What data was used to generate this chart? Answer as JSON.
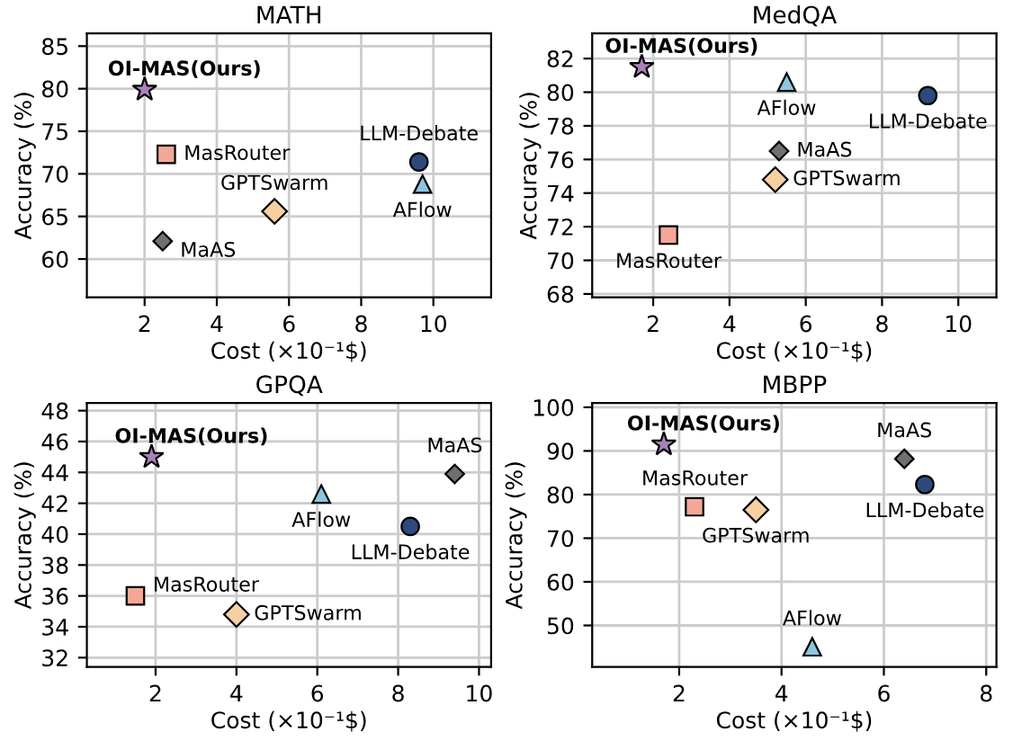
{
  "chart_data": [
    {
      "type": "scatter",
      "title": "MATH",
      "xlabel": "Cost (×10⁻¹$)",
      "ylabel": "Accuracy (%)",
      "xlim": [
        0.4,
        11.6
      ],
      "xticks": [
        2,
        4,
        6,
        8,
        10
      ],
      "ylim": [
        55.5,
        86.5
      ],
      "yticks": [
        60,
        65,
        70,
        75,
        80,
        85
      ],
      "grid": true,
      "series": [
        {
          "name": "OI-MAS(Ours)",
          "color": "#a883b8",
          "marker": "star",
          "x": [
            2.0
          ],
          "values": [
            79.9
          ]
        },
        {
          "name": "MasRouter",
          "color": "#f4a797",
          "marker": "square",
          "x": [
            2.6
          ],
          "values": [
            72.3
          ]
        },
        {
          "name": "GPTSwarm",
          "color": "#f5d0a0",
          "marker": "diamond",
          "x": [
            5.6
          ],
          "values": [
            65.6
          ]
        },
        {
          "name": "MaAS",
          "color": "#707070",
          "marker": "diamond",
          "x": [
            2.5
          ],
          "values": [
            62.1
          ]
        },
        {
          "name": "LLM-Debate",
          "color": "#2e4a7d",
          "marker": "circle",
          "x": [
            9.6
          ],
          "values": [
            71.4
          ]
        },
        {
          "name": "AFlow",
          "color": "#8ec5de",
          "marker": "triangle",
          "x": [
            9.7
          ],
          "values": [
            68.8
          ]
        }
      ]
    },
    {
      "type": "scatter",
      "title": "MedQA",
      "xlabel": "Cost (×10⁻¹$)",
      "ylabel": "Accuracy (%)",
      "xlim": [
        0.4,
        11.0
      ],
      "xticks": [
        2,
        4,
        6,
        8,
        10
      ],
      "ylim": [
        67.8,
        83.5
      ],
      "yticks": [
        68,
        70,
        72,
        74,
        76,
        78,
        80,
        82
      ],
      "grid": true,
      "series": [
        {
          "name": "OI-MAS(Ours)",
          "color": "#a883b8",
          "marker": "star",
          "x": [
            1.7
          ],
          "values": [
            81.5
          ]
        },
        {
          "name": "MasRouter",
          "color": "#f4a797",
          "marker": "square",
          "x": [
            2.4
          ],
          "values": [
            71.5
          ]
        },
        {
          "name": "GPTSwarm",
          "color": "#f5d0a0",
          "marker": "diamond",
          "x": [
            5.2
          ],
          "values": [
            74.8
          ]
        },
        {
          "name": "MaAS",
          "color": "#707070",
          "marker": "diamond",
          "x": [
            5.3
          ],
          "values": [
            76.5
          ]
        },
        {
          "name": "LLM-Debate",
          "color": "#2e4a7d",
          "marker": "circle",
          "x": [
            9.2
          ],
          "values": [
            79.8
          ]
        },
        {
          "name": "AFlow",
          "color": "#8ec5de",
          "marker": "triangle",
          "x": [
            5.5
          ],
          "values": [
            80.6
          ]
        }
      ]
    },
    {
      "type": "scatter",
      "title": "GPQA",
      "xlabel": "Cost (×10⁻¹$)",
      "ylabel": "Accuracy (%)",
      "xlim": [
        0.3,
        10.3
      ],
      "xticks": [
        2,
        4,
        6,
        8,
        10
      ],
      "ylim": [
        31.4,
        48.5
      ],
      "yticks": [
        32,
        34,
        36,
        38,
        40,
        42,
        44,
        46,
        48
      ],
      "grid": true,
      "series": [
        {
          "name": "OI-MAS(Ours)",
          "color": "#a883b8",
          "marker": "star",
          "x": [
            1.9
          ],
          "values": [
            45.0
          ]
        },
        {
          "name": "MasRouter",
          "color": "#f4a797",
          "marker": "square",
          "x": [
            1.5
          ],
          "values": [
            36.0
          ]
        },
        {
          "name": "GPTSwarm",
          "color": "#f5d0a0",
          "marker": "diamond",
          "x": [
            4.0
          ],
          "values": [
            34.8
          ]
        },
        {
          "name": "MaAS",
          "color": "#707070",
          "marker": "diamond",
          "x": [
            9.4
          ],
          "values": [
            43.9
          ]
        },
        {
          "name": "LLM-Debate",
          "color": "#2e4a7d",
          "marker": "circle",
          "x": [
            8.3
          ],
          "values": [
            40.5
          ]
        },
        {
          "name": "AFlow",
          "color": "#8ec5de",
          "marker": "triangle",
          "x": [
            6.1
          ],
          "values": [
            42.6
          ]
        }
      ]
    },
    {
      "type": "scatter",
      "title": "MBPP",
      "xlabel": "Cost (×10⁻¹$)",
      "ylabel": "Accuracy (%)",
      "xlim": [
        0.3,
        8.2
      ],
      "xticks": [
        2,
        4,
        6,
        8
      ],
      "ylim": [
        40.5,
        101
      ],
      "yticks": [
        50,
        60,
        70,
        80,
        90,
        100
      ],
      "grid": true,
      "series": [
        {
          "name": "OI-MAS(Ours)",
          "color": "#a883b8",
          "marker": "star",
          "x": [
            1.7
          ],
          "values": [
            91.5
          ]
        },
        {
          "name": "MasRouter",
          "color": "#f4a797",
          "marker": "square",
          "x": [
            2.3
          ],
          "values": [
            77.2
          ]
        },
        {
          "name": "GPTSwarm",
          "color": "#f5d0a0",
          "marker": "diamond",
          "x": [
            3.5
          ],
          "values": [
            76.5
          ]
        },
        {
          "name": "MaAS",
          "color": "#707070",
          "marker": "diamond",
          "x": [
            6.4
          ],
          "values": [
            88.2
          ]
        },
        {
          "name": "LLM-Debate",
          "color": "#2e4a7d",
          "marker": "circle",
          "x": [
            6.8
          ],
          "values": [
            82.3
          ]
        },
        {
          "name": "AFlow",
          "color": "#8ec5de",
          "marker": "triangle",
          "x": [
            4.6
          ],
          "values": [
            45.1
          ]
        }
      ]
    }
  ]
}
